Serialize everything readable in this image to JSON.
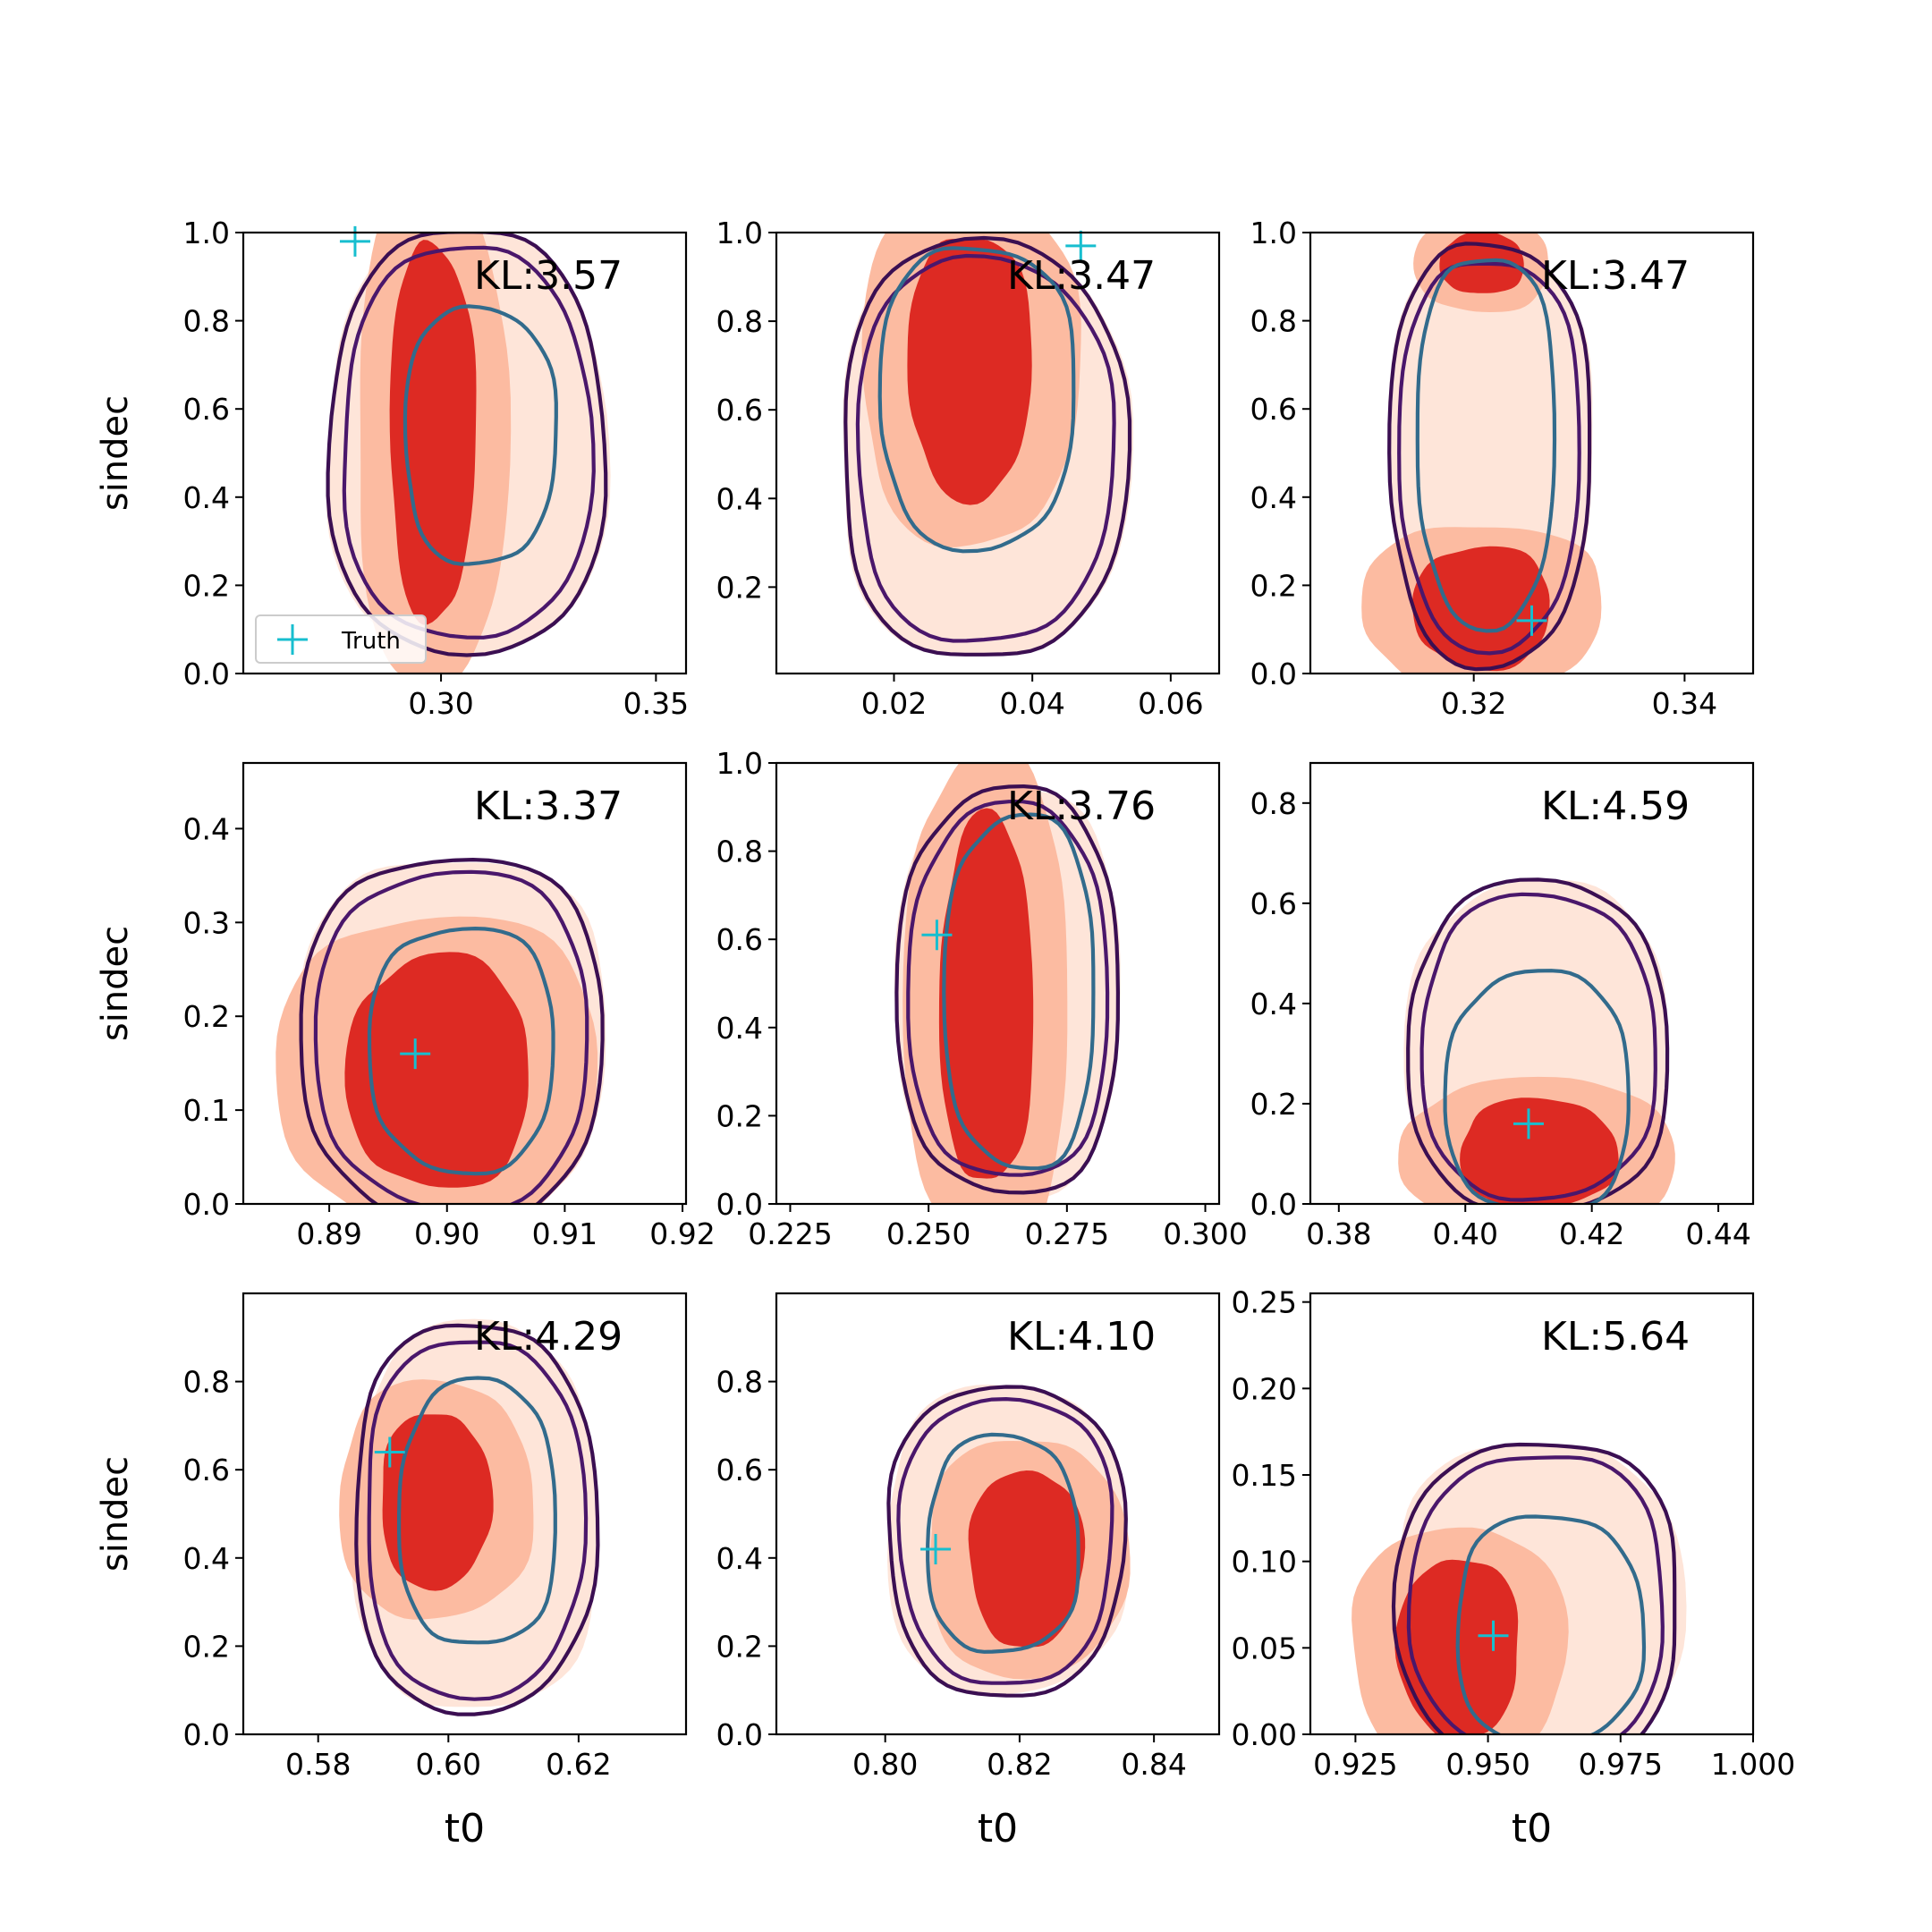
{
  "colors": {
    "fill_levels": [
      "#fee5d9",
      "#fcbba1",
      "#f24a35",
      "#dd2a23"
    ],
    "outer_contour": "#3b0f52",
    "middle_contour": "#4a176b",
    "inner_contour": "#326b8c",
    "truth_marker": "#17becf"
  },
  "legend": {
    "label": "Truth",
    "marker": "plus"
  },
  "chart_data": [
    {
      "type": "contour",
      "kl_label": "KL:3.57",
      "xlabel": "",
      "ylabel": "sindec",
      "xlim": [
        0.254,
        0.357
      ],
      "ylim": [
        0,
        1
      ],
      "xticks": [
        0.3,
        0.35
      ],
      "xtick_labels": [
        "0.30",
        "0.35"
      ],
      "yticks": [
        0,
        0.2,
        0.4,
        0.6,
        0.8,
        1.0
      ],
      "ytick_labels": [
        "0.0",
        "0.2",
        "0.4",
        "0.6",
        "0.8",
        "1.0"
      ],
      "truth": [
        0.28,
        0.98
      ],
      "center": [
        0.306,
        0.52
      ],
      "outer_half": [
        0.032,
        0.48
      ],
      "inner_half": [
        0.0175,
        0.29
      ],
      "inner_center": [
        0.309,
        0.54
      ],
      "core": [
        0.298,
        0.55,
        0.01,
        0.43
      ],
      "show_legend": true
    },
    {
      "type": "contour",
      "kl_label": "KL:3.47",
      "xlabel": "",
      "ylabel": "",
      "xlim": [
        0.003,
        0.067
      ],
      "ylim": [
        0.005,
        1
      ],
      "xticks": [
        0.02,
        0.04,
        0.06
      ],
      "xtick_labels": [
        "0.02",
        "0.04",
        "0.06"
      ],
      "yticks": [
        0.2,
        0.4,
        0.6,
        0.8,
        1.0
      ],
      "ytick_labels": [
        "0.2",
        "0.4",
        "0.6",
        "0.8",
        "1.0"
      ],
      "truth": [
        0.047,
        0.97
      ],
      "center": [
        0.033,
        0.51
      ],
      "outer_half": [
        0.0205,
        0.47
      ],
      "inner_half": [
        0.014,
        0.34
      ],
      "inner_center": [
        0.032,
        0.63
      ],
      "core": [
        0.031,
        0.7,
        0.009,
        0.3
      ]
    },
    {
      "type": "contour",
      "kl_label": "KL:3.47",
      "xlabel": "",
      "ylabel": "",
      "xlim": [
        0.3045,
        0.3465
      ],
      "ylim": [
        0,
        1
      ],
      "xticks": [
        0.32,
        0.34
      ],
      "xtick_labels": [
        "0.32",
        "0.34"
      ],
      "yticks": [
        0,
        0.2,
        0.4,
        0.6,
        0.8,
        1.0
      ],
      "ytick_labels": [
        "0.0",
        "0.2",
        "0.4",
        "0.6",
        "0.8",
        "1.0"
      ],
      "truth": [
        0.3255,
        0.12
      ],
      "center": [
        0.3215,
        0.5
      ],
      "outer_half": [
        0.0095,
        0.48
      ],
      "inner_half": [
        0.0065,
        0.42
      ],
      "inner_center": [
        0.3212,
        0.53
      ],
      "core": [
        0.3208,
        0.15,
        0.0065,
        0.14
      ],
      "core2": [
        0.3208,
        0.93,
        0.004,
        0.07
      ]
    },
    {
      "type": "contour",
      "kl_label": "KL:3.37",
      "xlabel": "",
      "ylabel": "sindec",
      "xlim": [
        0.8827,
        0.9203
      ],
      "ylim": [
        0,
        0.47
      ],
      "xticks": [
        0.89,
        0.9,
        0.91,
        0.92
      ],
      "xtick_labels": [
        "0.89",
        "0.90",
        "0.91",
        "0.92"
      ],
      "yticks": [
        0,
        0.1,
        0.2,
        0.3,
        0.4
      ],
      "ytick_labels": [
        "0.0",
        "0.1",
        "0.2",
        "0.3",
        "0.4"
      ],
      "truth": [
        0.8973,
        0.16
      ],
      "center": [
        0.9005,
        0.175
      ],
      "outer_half": [
        0.0128,
        0.195
      ],
      "inner_half": [
        0.0078,
        0.13
      ],
      "inner_center": [
        0.9013,
        0.165
      ],
      "core": [
        0.8993,
        0.14,
        0.0078,
        0.125
      ]
    },
    {
      "type": "contour",
      "kl_label": "KL:3.76",
      "xlabel": "",
      "ylabel": "",
      "xlim": [
        0.2225,
        0.3025
      ],
      "ylim": [
        0,
        1
      ],
      "xticks": [
        0.225,
        0.25,
        0.275,
        0.3
      ],
      "xtick_labels": [
        "0.225",
        "0.250",
        "0.275",
        "0.300"
      ],
      "yticks": [
        0,
        0.2,
        0.4,
        0.6,
        0.8,
        1.0
      ],
      "ytick_labels": [
        "0.0",
        "0.2",
        "0.4",
        "0.6",
        "0.8",
        "1.0"
      ],
      "truth": [
        0.2515,
        0.61
      ],
      "center": [
        0.2645,
        0.48
      ],
      "outer_half": [
        0.02,
        0.46
      ],
      "inner_half": [
        0.0135,
        0.4
      ],
      "inner_center": [
        0.2665,
        0.48
      ],
      "core": [
        0.2605,
        0.46,
        0.0085,
        0.42
      ]
    },
    {
      "type": "contour",
      "kl_label": "KL:4.59",
      "xlabel": "",
      "ylabel": "",
      "xlim": [
        0.3755,
        0.4455
      ],
      "ylim": [
        0,
        0.88
      ],
      "xticks": [
        0.38,
        0.4,
        0.42,
        0.44
      ],
      "xtick_labels": [
        "0.38",
        "0.40",
        "0.42",
        "0.44"
      ],
      "yticks": [
        0,
        0.2,
        0.4,
        0.6,
        0.8
      ],
      "ytick_labels": [
        "0.0",
        "0.2",
        "0.4",
        "0.6",
        "0.8"
      ],
      "truth": [
        0.41,
        0.16
      ],
      "center": [
        0.4115,
        0.31
      ],
      "outer_half": [
        0.0205,
        0.33
      ],
      "inner_half": [
        0.0145,
        0.24
      ],
      "inner_center": [
        0.4115,
        0.22
      ],
      "core": [
        0.4115,
        0.1,
        0.0125,
        0.11
      ]
    },
    {
      "type": "contour",
      "kl_label": "KL:4.29",
      "xlabel": "t0",
      "ylabel": "sindec",
      "xlim": [
        0.5685,
        0.6365
      ],
      "ylim": [
        0,
        1
      ],
      "xticks": [
        0.58,
        0.6,
        0.62
      ],
      "xtick_labels": [
        "0.58",
        "0.60",
        "0.62"
      ],
      "yticks": [
        0,
        0.2,
        0.4,
        0.6,
        0.8
      ],
      "ytick_labels": [
        "0.0",
        "0.2",
        "0.4",
        "0.6",
        "0.8"
      ],
      "truth": [
        0.591,
        0.64
      ],
      "center": [
        0.604,
        0.49
      ],
      "outer_half": [
        0.0185,
        0.44
      ],
      "inner_half": [
        0.012,
        0.3
      ],
      "inner_center": [
        0.6045,
        0.5
      ],
      "core": [
        0.598,
        0.53,
        0.0085,
        0.2
      ]
    },
    {
      "type": "contour",
      "kl_label": "KL:4.10",
      "xlabel": "t0",
      "ylabel": "",
      "xlim": [
        0.7838,
        0.8497
      ],
      "ylim": [
        0,
        1
      ],
      "xticks": [
        0.8,
        0.82,
        0.84
      ],
      "xtick_labels": [
        "0.80",
        "0.82",
        "0.84"
      ],
      "yticks": [
        0,
        0.2,
        0.4,
        0.6,
        0.8
      ],
      "ytick_labels": [
        "0.0",
        "0.2",
        "0.4",
        "0.6",
        "0.8"
      ],
      "truth": [
        0.8075,
        0.42
      ],
      "center": [
        0.818,
        0.44
      ],
      "outer_half": [
        0.0175,
        0.35
      ],
      "inner_half": [
        0.0112,
        0.245
      ],
      "inner_center": [
        0.8175,
        0.43
      ],
      "core": [
        0.821,
        0.4,
        0.0085,
        0.2
      ]
    },
    {
      "type": "contour",
      "kl_label": "KL:5.64",
      "xlabel": "t0",
      "ylabel": "",
      "xlim": [
        0.9165,
        1.0
      ],
      "ylim": [
        0,
        0.255
      ],
      "xticks": [
        0.925,
        0.95,
        0.975,
        1.0
      ],
      "xtick_labels": [
        "0.925",
        "0.950",
        "0.975",
        "1.000"
      ],
      "yticks": [
        0,
        0.05,
        0.1,
        0.15,
        0.2,
        0.25
      ],
      "ytick_labels": [
        "0.00",
        "0.05",
        "0.10",
        "0.15",
        "0.20",
        "0.25"
      ],
      "truth": [
        0.951,
        0.057
      ],
      "center": [
        0.9595,
        0.074
      ],
      "outer_half": [
        0.0265,
        0.095
      ],
      "inner_half": [
        0.0175,
        0.066
      ],
      "inner_center": [
        0.9615,
        0.06
      ],
      "core": [
        0.9445,
        0.05,
        0.0115,
        0.052
      ]
    }
  ]
}
